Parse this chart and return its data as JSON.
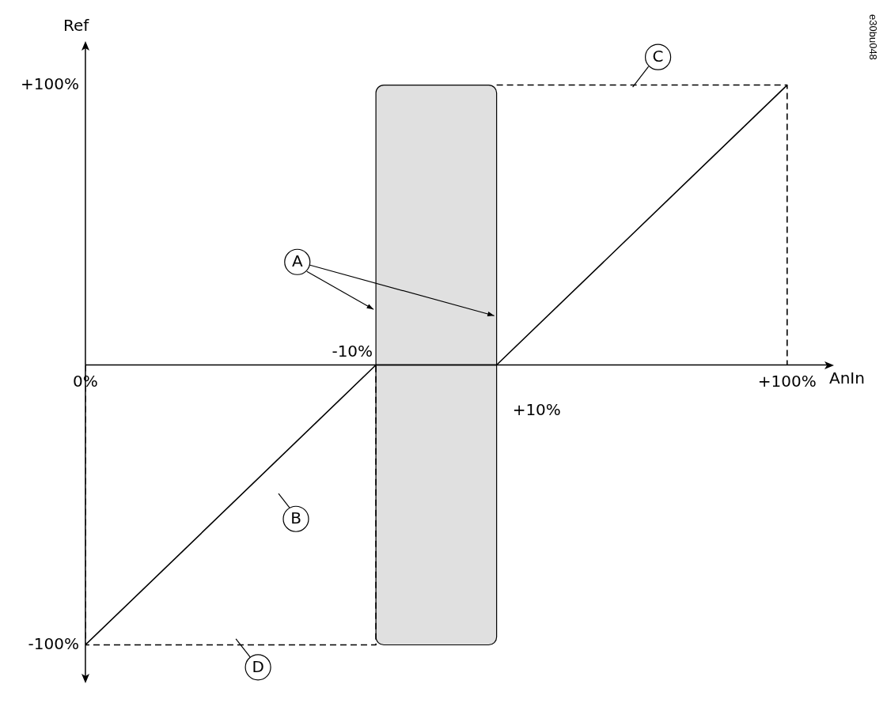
{
  "chart_data": {
    "type": "line",
    "xlabel": "AnIn",
    "ylabel": "Ref",
    "xlim": [
      0,
      106
    ],
    "ylim": [
      -112,
      114
    ],
    "xticks": [
      {
        "value": 0,
        "label": "0%"
      },
      {
        "value": 100,
        "label": "+100%"
      }
    ],
    "yticks": [
      {
        "value": -100,
        "label": "-100%"
      },
      {
        "value": 100,
        "label": "+100%"
      }
    ],
    "grid": false,
    "legend": false,
    "marker": "none",
    "series": [
      {
        "color": "#000000",
        "x": [
          0,
          41.4,
          58.6,
          100
        ],
        "values": [
          -100,
          0,
          0,
          100
        ],
        "line_style": "solid"
      },
      {
        "color": "#000000",
        "x": [
          0,
          0,
          41.4,
          41.4
        ],
        "values": [
          0,
          -100,
          -100,
          0
        ],
        "line_style": "dashed"
      },
      {
        "color": "#000000",
        "x": [
          58.6,
          100,
          100
        ],
        "values": [
          100,
          100,
          0
        ],
        "line_style": "dashed"
      }
    ],
    "bands": [
      {
        "axis": "x",
        "from": 41.4,
        "to": 58.6,
        "color": "#e0e0e0"
      }
    ],
    "annotations": [
      {
        "text": "-10%",
        "x": 41.4,
        "y": 0
      },
      {
        "text": "+10%",
        "x": 58.6,
        "y": 0
      },
      {
        "text": "A",
        "x": 30.2,
        "y": 36.8
      },
      {
        "text": "B",
        "x": 30,
        "y": -55
      },
      {
        "text": "C",
        "x": 81.6,
        "y": 110
      },
      {
        "text": "D",
        "x": 24.6,
        "y": -108
      },
      "e30bu048"
    ]
  }
}
